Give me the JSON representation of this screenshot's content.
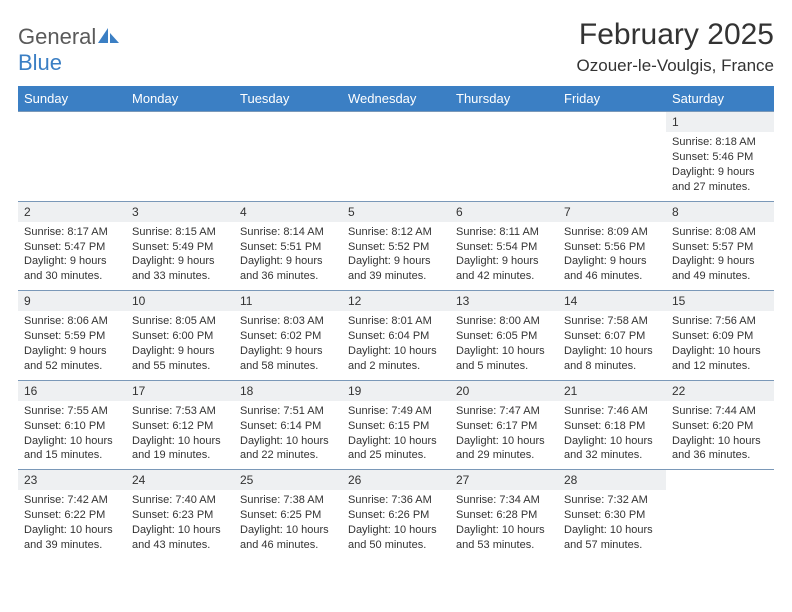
{
  "logo": {
    "word1": "General",
    "word2": "Blue"
  },
  "title": "February 2025",
  "location": "Ozouer-le-Voulgis, France",
  "colors": {
    "header_bg": "#3b7fc4",
    "header_text": "#ffffff",
    "daynum_bg": "#eef0f2",
    "rule": "#7a98b8",
    "text": "#333333",
    "logo_gray": "#5a5a5a",
    "logo_blue": "#3b7fc4"
  },
  "weekdays": [
    "Sunday",
    "Monday",
    "Tuesday",
    "Wednesday",
    "Thursday",
    "Friday",
    "Saturday"
  ],
  "weeks": [
    [
      null,
      null,
      null,
      null,
      null,
      null,
      {
        "n": "1",
        "l1": "Sunrise: 8:18 AM",
        "l2": "Sunset: 5:46 PM",
        "l3": "Daylight: 9 hours",
        "l4": "and 27 minutes."
      }
    ],
    [
      {
        "n": "2",
        "l1": "Sunrise: 8:17 AM",
        "l2": "Sunset: 5:47 PM",
        "l3": "Daylight: 9 hours",
        "l4": "and 30 minutes."
      },
      {
        "n": "3",
        "l1": "Sunrise: 8:15 AM",
        "l2": "Sunset: 5:49 PM",
        "l3": "Daylight: 9 hours",
        "l4": "and 33 minutes."
      },
      {
        "n": "4",
        "l1": "Sunrise: 8:14 AM",
        "l2": "Sunset: 5:51 PM",
        "l3": "Daylight: 9 hours",
        "l4": "and 36 minutes."
      },
      {
        "n": "5",
        "l1": "Sunrise: 8:12 AM",
        "l2": "Sunset: 5:52 PM",
        "l3": "Daylight: 9 hours",
        "l4": "and 39 minutes."
      },
      {
        "n": "6",
        "l1": "Sunrise: 8:11 AM",
        "l2": "Sunset: 5:54 PM",
        "l3": "Daylight: 9 hours",
        "l4": "and 42 minutes."
      },
      {
        "n": "7",
        "l1": "Sunrise: 8:09 AM",
        "l2": "Sunset: 5:56 PM",
        "l3": "Daylight: 9 hours",
        "l4": "and 46 minutes."
      },
      {
        "n": "8",
        "l1": "Sunrise: 8:08 AM",
        "l2": "Sunset: 5:57 PM",
        "l3": "Daylight: 9 hours",
        "l4": "and 49 minutes."
      }
    ],
    [
      {
        "n": "9",
        "l1": "Sunrise: 8:06 AM",
        "l2": "Sunset: 5:59 PM",
        "l3": "Daylight: 9 hours",
        "l4": "and 52 minutes."
      },
      {
        "n": "10",
        "l1": "Sunrise: 8:05 AM",
        "l2": "Sunset: 6:00 PM",
        "l3": "Daylight: 9 hours",
        "l4": "and 55 minutes."
      },
      {
        "n": "11",
        "l1": "Sunrise: 8:03 AM",
        "l2": "Sunset: 6:02 PM",
        "l3": "Daylight: 9 hours",
        "l4": "and 58 minutes."
      },
      {
        "n": "12",
        "l1": "Sunrise: 8:01 AM",
        "l2": "Sunset: 6:04 PM",
        "l3": "Daylight: 10 hours",
        "l4": "and 2 minutes."
      },
      {
        "n": "13",
        "l1": "Sunrise: 8:00 AM",
        "l2": "Sunset: 6:05 PM",
        "l3": "Daylight: 10 hours",
        "l4": "and 5 minutes."
      },
      {
        "n": "14",
        "l1": "Sunrise: 7:58 AM",
        "l2": "Sunset: 6:07 PM",
        "l3": "Daylight: 10 hours",
        "l4": "and 8 minutes."
      },
      {
        "n": "15",
        "l1": "Sunrise: 7:56 AM",
        "l2": "Sunset: 6:09 PM",
        "l3": "Daylight: 10 hours",
        "l4": "and 12 minutes."
      }
    ],
    [
      {
        "n": "16",
        "l1": "Sunrise: 7:55 AM",
        "l2": "Sunset: 6:10 PM",
        "l3": "Daylight: 10 hours",
        "l4": "and 15 minutes."
      },
      {
        "n": "17",
        "l1": "Sunrise: 7:53 AM",
        "l2": "Sunset: 6:12 PM",
        "l3": "Daylight: 10 hours",
        "l4": "and 19 minutes."
      },
      {
        "n": "18",
        "l1": "Sunrise: 7:51 AM",
        "l2": "Sunset: 6:14 PM",
        "l3": "Daylight: 10 hours",
        "l4": "and 22 minutes."
      },
      {
        "n": "19",
        "l1": "Sunrise: 7:49 AM",
        "l2": "Sunset: 6:15 PM",
        "l3": "Daylight: 10 hours",
        "l4": "and 25 minutes."
      },
      {
        "n": "20",
        "l1": "Sunrise: 7:47 AM",
        "l2": "Sunset: 6:17 PM",
        "l3": "Daylight: 10 hours",
        "l4": "and 29 minutes."
      },
      {
        "n": "21",
        "l1": "Sunrise: 7:46 AM",
        "l2": "Sunset: 6:18 PM",
        "l3": "Daylight: 10 hours",
        "l4": "and 32 minutes."
      },
      {
        "n": "22",
        "l1": "Sunrise: 7:44 AM",
        "l2": "Sunset: 6:20 PM",
        "l3": "Daylight: 10 hours",
        "l4": "and 36 minutes."
      }
    ],
    [
      {
        "n": "23",
        "l1": "Sunrise: 7:42 AM",
        "l2": "Sunset: 6:22 PM",
        "l3": "Daylight: 10 hours",
        "l4": "and 39 minutes."
      },
      {
        "n": "24",
        "l1": "Sunrise: 7:40 AM",
        "l2": "Sunset: 6:23 PM",
        "l3": "Daylight: 10 hours",
        "l4": "and 43 minutes."
      },
      {
        "n": "25",
        "l1": "Sunrise: 7:38 AM",
        "l2": "Sunset: 6:25 PM",
        "l3": "Daylight: 10 hours",
        "l4": "and 46 minutes."
      },
      {
        "n": "26",
        "l1": "Sunrise: 7:36 AM",
        "l2": "Sunset: 6:26 PM",
        "l3": "Daylight: 10 hours",
        "l4": "and 50 minutes."
      },
      {
        "n": "27",
        "l1": "Sunrise: 7:34 AM",
        "l2": "Sunset: 6:28 PM",
        "l3": "Daylight: 10 hours",
        "l4": "and 53 minutes."
      },
      {
        "n": "28",
        "l1": "Sunrise: 7:32 AM",
        "l2": "Sunset: 6:30 PM",
        "l3": "Daylight: 10 hours",
        "l4": "and 57 minutes."
      },
      null
    ]
  ]
}
